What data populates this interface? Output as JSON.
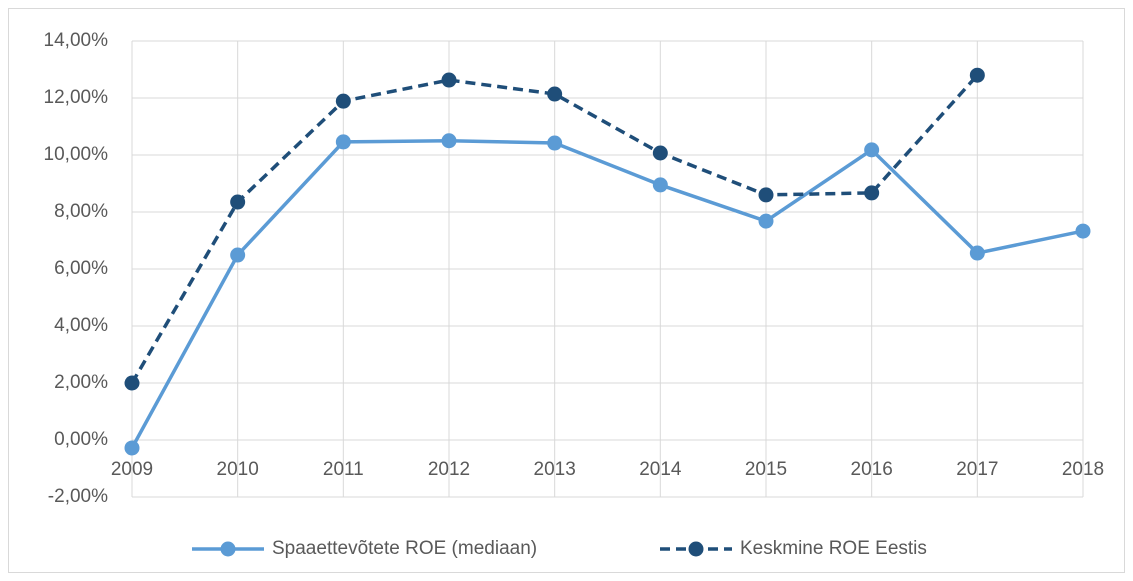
{
  "chart_data": {
    "type": "line",
    "categories": [
      "2009",
      "2010",
      "2011",
      "2012",
      "2013",
      "2014",
      "2015",
      "2016",
      "2017",
      "2018"
    ],
    "series": [
      {
        "name": "Spaaettevõtete ROE (mediaan)",
        "color": "#5b9bd5",
        "line_style": "solid",
        "values": [
          -0.28,
          6.49,
          10.46,
          10.5,
          10.42,
          8.95,
          7.68,
          10.18,
          6.56,
          7.33
        ]
      },
      {
        "name": "Keskmine ROE Eestis",
        "color": "#1f4e79",
        "line_style": "dashed",
        "values": [
          2.0,
          8.35,
          11.89,
          12.63,
          12.14,
          10.07,
          8.6,
          8.67,
          12.8,
          null
        ]
      }
    ],
    "ylim": [
      -2,
      14
    ],
    "yticks": [
      {
        "value": -2,
        "label": "-2,00%"
      },
      {
        "value": 0,
        "label": "0,00%"
      },
      {
        "value": 2,
        "label": "2,00%"
      },
      {
        "value": 4,
        "label": "4,00%"
      },
      {
        "value": 6,
        "label": "6,00%"
      },
      {
        "value": 8,
        "label": "8,00%"
      },
      {
        "value": 10,
        "label": "10,00%"
      },
      {
        "value": 12,
        "label": "12,00%"
      },
      {
        "value": 14,
        "label": "14,00%"
      }
    ],
    "grid": true,
    "legend": "bottom"
  }
}
